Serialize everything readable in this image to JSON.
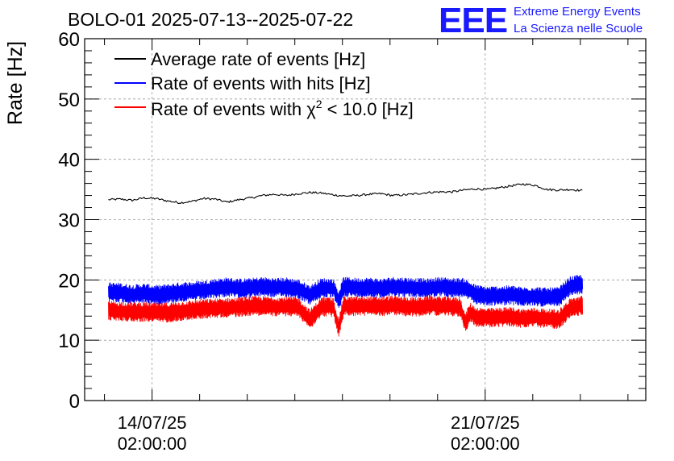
{
  "chart_data": {
    "type": "line",
    "title": "BOLO-01 2025-07-13--2025-07-22",
    "ylabel": "Rate [Hz]",
    "xlabel": "",
    "ylim": [
      0,
      60
    ],
    "yticks": [
      0,
      10,
      20,
      30,
      40,
      50,
      60
    ],
    "xlim": [
      "2025-07-12 16:00",
      "2025-07-24 11:00"
    ],
    "xticks": [
      {
        "at": "2025-07-14 02:00:00",
        "date": "14/07/25",
        "time": "02:00:00"
      },
      {
        "at": "2025-07-21 02:00:00",
        "date": "21/07/25",
        "time": "02:00:00"
      }
    ],
    "grid": true,
    "legend_position": "top-left",
    "x_start": "2025-07-13 04:00",
    "x_end": "2025-07-23 03:00",
    "series": [
      {
        "name": "Average rate of events [Hz]",
        "color": "#000000",
        "style": "thin",
        "values": [
          33.3,
          33.4,
          33.2,
          33.6,
          33.5,
          33.1,
          32.8,
          33.0,
          33.5,
          33.4,
          32.9,
          33.3,
          33.6,
          34.0,
          34.2,
          34.0,
          34.3,
          34.5,
          34.4,
          34.1,
          33.9,
          34.0,
          34.2,
          34.3,
          34.0,
          34.1,
          34.3,
          34.5,
          34.6,
          34.6,
          34.9,
          35.1,
          35.0,
          35.3,
          35.6,
          35.9,
          35.7,
          35.0,
          34.9,
          35.0,
          34.8
        ]
      },
      {
        "name": "Rate of events with hits [Hz]",
        "color": "#0000ff",
        "style": "noisy",
        "values": [
          18.0,
          17.9,
          17.6,
          17.8,
          17.5,
          17.7,
          18.0,
          18.1,
          18.3,
          18.6,
          18.8,
          18.6,
          18.7,
          18.9,
          18.7,
          18.8,
          18.5,
          17.5,
          18.7,
          18.6,
          18.9,
          18.7,
          18.8,
          18.6,
          18.9,
          18.8,
          18.7,
          18.6,
          18.9,
          18.7,
          18.7,
          17.6,
          17.3,
          17.4,
          17.5,
          17.2,
          17.3,
          17.1,
          17.2,
          19.0,
          19.3
        ]
      },
      {
        "name": "Rate of events with χ² < 10.0 [Hz]",
        "color": "#ff0000",
        "style": "noisy",
        "values": [
          14.9,
          14.8,
          14.7,
          14.7,
          14.6,
          14.6,
          14.8,
          15.0,
          15.2,
          15.3,
          15.4,
          15.5,
          15.7,
          15.7,
          15.6,
          15.6,
          15.5,
          13.5,
          15.6,
          15.4,
          15.7,
          15.6,
          15.7,
          15.6,
          15.8,
          15.6,
          15.5,
          15.8,
          15.7,
          15.6,
          15.5,
          13.9,
          13.7,
          13.8,
          13.9,
          13.6,
          13.8,
          13.6,
          13.5,
          15.4,
          15.8
        ]
      }
    ],
    "legend_label_parts": {
      "hits_prefix": "Rate of events with χ",
      "hits_sup": "2",
      "hits_suffix": " < 10.0 [Hz]"
    },
    "annotations": [
      {
        "at": "2025-07-18 00:00",
        "series": 1,
        "dip_to": 16.5
      },
      {
        "at": "2025-07-18 00:00",
        "series": 2,
        "dip_to": 12.0
      },
      {
        "at": "2025-07-20 16:00",
        "series": 2,
        "dip_to": 12.7
      }
    ]
  },
  "brand": {
    "logo_text": "EEE",
    "line1": "Extreme Energy Events",
    "line2": "La Scienza nelle Scuole",
    "color": "#1a1aff"
  }
}
